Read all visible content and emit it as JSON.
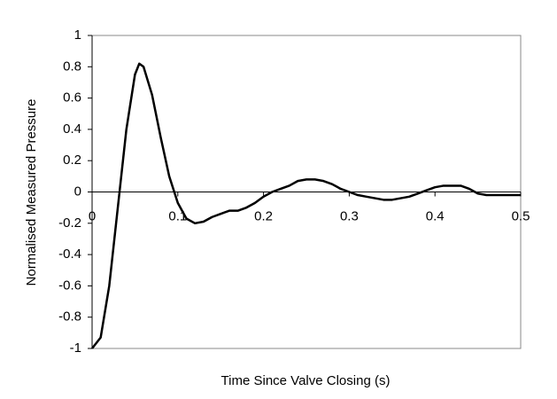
{
  "chart_data": {
    "type": "line",
    "x_label": "Time Since Valve Closing (s)",
    "y_label": "Normalised Measured Pressure",
    "x": [
      0,
      0.01,
      0.02,
      0.03,
      0.04,
      0.05,
      0.055,
      0.06,
      0.07,
      0.08,
      0.09,
      0.1,
      0.11,
      0.12,
      0.13,
      0.14,
      0.15,
      0.16,
      0.17,
      0.18,
      0.19,
      0.2,
      0.21,
      0.22,
      0.23,
      0.24,
      0.25,
      0.26,
      0.27,
      0.28,
      0.29,
      0.3,
      0.31,
      0.32,
      0.33,
      0.34,
      0.35,
      0.36,
      0.37,
      0.38,
      0.39,
      0.4,
      0.41,
      0.42,
      0.43,
      0.44,
      0.45,
      0.46,
      0.47,
      0.48,
      0.49,
      0.5
    ],
    "values": [
      -1,
      -0.93,
      -0.6,
      -0.1,
      0.4,
      0.75,
      0.82,
      0.8,
      0.62,
      0.35,
      0.1,
      -0.07,
      -0.17,
      -0.2,
      -0.19,
      -0.16,
      -0.14,
      -0.12,
      -0.12,
      -0.1,
      -0.07,
      -0.03,
      0.0,
      0.02,
      0.04,
      0.07,
      0.08,
      0.08,
      0.07,
      0.05,
      0.02,
      0.0,
      -0.02,
      -0.03,
      -0.04,
      -0.05,
      -0.05,
      -0.04,
      -0.03,
      -0.01,
      0.01,
      0.03,
      0.04,
      0.04,
      0.04,
      0.02,
      -0.01,
      -0.02,
      -0.02,
      -0.02,
      -0.02,
      -0.02
    ],
    "color": "#000000",
    "xlim": [
      0,
      0.5
    ],
    "xticks": [
      0,
      0.1,
      0.2,
      0.3,
      0.4,
      0.5
    ],
    "ylim": [
      -1,
      1
    ],
    "yticks": [
      -1,
      -0.8,
      -0.6,
      -0.4,
      -0.2,
      0,
      0.2,
      0.4,
      0.6,
      0.8,
      1
    ]
  }
}
